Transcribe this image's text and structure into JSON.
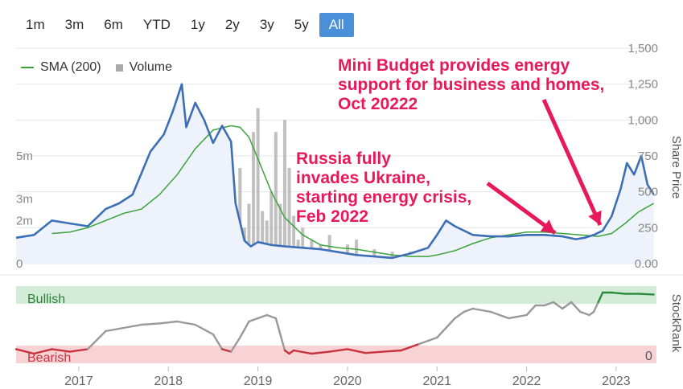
{
  "range_buttons": [
    "1m",
    "3m",
    "6m",
    "YTD",
    "1y",
    "2y",
    "3y",
    "5y",
    "All"
  ],
  "active_range": "All",
  "legend": {
    "sma": "SMA (200)",
    "volume": "Volume"
  },
  "colors": {
    "price": "#3c6fb5",
    "sma": "#3aa33a",
    "volume": "#b5b5b5",
    "area": "#eef2fa",
    "bullish_band": "#d3ecd8",
    "bearish_band": "#f7d3d6",
    "rank_bull": "#2a8a3a",
    "rank_bear": "#c8323c",
    "rank_mid": "#999999",
    "annotation": "#e8195a"
  },
  "annotations": [
    {
      "text": "Mini Budget provides energy support for business and homes, Oct 20222",
      "lines": [
        "Mini Budget provides energy",
        "support for business and homes,",
        "Oct 20222"
      ],
      "target": [
        2022.75,
        260
      ]
    },
    {
      "text": "Russia fully invades Ukraine, starting energy crisis, Feb 2022",
      "lines": [
        "Russia fully",
        "invades Ukraine,",
        "starting energy crisis,",
        "Feb 2022"
      ],
      "target": [
        2022.2,
        210
      ]
    }
  ],
  "chart_data": [
    {
      "type": "line",
      "title": "",
      "ylabel": "Share Price",
      "x_axis": {
        "type": "year",
        "range": [
          2016.3,
          2023.45
        ],
        "ticks": [
          "2017",
          "2018",
          "2019",
          "2020",
          "2021",
          "2022",
          "2023"
        ]
      },
      "y_right": {
        "range": [
          0,
          1500
        ],
        "ticks": [
          "0.00",
          "250",
          "500",
          "750",
          "1,000",
          "1,250",
          "1,500"
        ]
      },
      "y_left_volume": {
        "range": [
          0,
          9
        ],
        "ticks": [
          "0",
          "2m",
          "3m",
          "5m"
        ],
        "unit": "m"
      },
      "grid": true,
      "series": [
        {
          "name": "Share Price",
          "x": [
            2016.3,
            2016.5,
            2016.7,
            2016.9,
            2017.1,
            2017.3,
            2017.45,
            2017.6,
            2017.8,
            2017.95,
            2018.05,
            2018.15,
            2018.2,
            2018.3,
            2018.4,
            2018.5,
            2018.6,
            2018.7,
            2018.75,
            2018.85,
            2018.92,
            2019.0,
            2019.15,
            2019.3,
            2019.5,
            2019.7,
            2019.9,
            2020.1,
            2020.3,
            2020.5,
            2020.7,
            2020.9,
            2021.0,
            2021.1,
            2021.2,
            2021.4,
            2021.6,
            2021.8,
            2022.0,
            2022.2,
            2022.4,
            2022.55,
            2022.65,
            2022.75,
            2022.85,
            2022.95,
            2023.05,
            2023.12,
            2023.2,
            2023.28,
            2023.35,
            2023.42
          ],
          "values": [
            180,
            200,
            300,
            280,
            260,
            380,
            420,
            480,
            780,
            900,
            1060,
            1250,
            950,
            1120,
            1000,
            840,
            960,
            850,
            420,
            160,
            120,
            150,
            130,
            120,
            110,
            100,
            80,
            60,
            50,
            40,
            70,
            110,
            200,
            300,
            260,
            200,
            190,
            190,
            200,
            200,
            190,
            170,
            180,
            200,
            230,
            330,
            520,
            700,
            620,
            750,
            550,
            480
          ]
        },
        {
          "name": "SMA (200)",
          "x": [
            2016.7,
            2016.9,
            2017.1,
            2017.3,
            2017.5,
            2017.7,
            2017.9,
            2018.1,
            2018.3,
            2018.5,
            2018.7,
            2018.8,
            2018.9,
            2019.0,
            2019.15,
            2019.3,
            2019.5,
            2019.7,
            2019.9,
            2020.1,
            2020.3,
            2020.5,
            2020.7,
            2020.9,
            2021.0,
            2021.2,
            2021.4,
            2021.6,
            2021.8,
            2022.0,
            2022.2,
            2022.4,
            2022.6,
            2022.8,
            2022.95,
            2023.1,
            2023.25,
            2023.42
          ],
          "values": [
            210,
            220,
            250,
            300,
            350,
            380,
            480,
            620,
            800,
            930,
            960,
            950,
            880,
            730,
            500,
            320,
            200,
            130,
            110,
            100,
            80,
            60,
            50,
            50,
            60,
            90,
            140,
            180,
            200,
            220,
            220,
            210,
            200,
            190,
            210,
            280,
            360,
            420
          ]
        },
        {
          "name": "Volume",
          "type": "bar",
          "x": [
            2018.75,
            2018.8,
            2018.85,
            2018.9,
            2018.95,
            2019.0,
            2019.05,
            2019.1,
            2019.15,
            2019.2,
            2019.25,
            2019.3,
            2019.35,
            2019.4,
            2019.45,
            2019.5,
            2019.6,
            2019.7,
            2019.8,
            2020.0,
            2020.1,
            2020.3,
            2020.5,
            2020.7,
            2021.0,
            2021.1,
            2021.3,
            2021.5,
            2021.8,
            2022.0,
            2022.2,
            2022.4,
            2022.6,
            2022.8,
            2022.95,
            2023.05,
            2023.15,
            2023.25,
            2023.35
          ],
          "values": [
            2.2,
            4.0,
            1.5,
            2.5,
            5.5,
            6.5,
            2.2,
            1.8,
            3.0,
            5.5,
            2.5,
            6.0,
            4.0,
            2.0,
            1.0,
            1.5,
            1.0,
            0.8,
            1.2,
            0.8,
            1.0,
            0.6,
            0.5,
            0.5,
            0.7,
            0.6,
            0.5,
            0.6,
            0.5,
            0.5,
            0.5,
            0.6,
            0.5,
            0.7,
            1.0,
            1.2,
            1.8,
            1.5,
            0.8
          ]
        }
      ]
    },
    {
      "type": "line",
      "title": "",
      "ylabel": "StockRank",
      "bands": [
        "Bullish",
        "Bearish"
      ],
      "y_ticks": [
        "0"
      ],
      "y_range": [
        0,
        100
      ],
      "series": [
        {
          "name": "StockRank",
          "x": [
            2016.3,
            2016.5,
            2016.7,
            2016.9,
            2017.1,
            2017.3,
            2017.5,
            2017.7,
            2017.9,
            2018.1,
            2018.3,
            2018.5,
            2018.6,
            2018.7,
            2018.8,
            2018.9,
            2019.0,
            2019.1,
            2019.2,
            2019.3,
            2019.35,
            2019.4,
            2019.6,
            2019.8,
            2020.0,
            2020.2,
            2020.4,
            2020.6,
            2020.8,
            2021.0,
            2021.1,
            2021.2,
            2021.3,
            2021.4,
            2021.6,
            2021.8,
            2022.0,
            2022.1,
            2022.2,
            2022.3,
            2022.4,
            2022.5,
            2022.6,
            2022.7,
            2022.75,
            2022.8,
            2022.85,
            2022.95,
            2023.1,
            2023.25,
            2023.42
          ],
          "values": [
            12,
            5,
            12,
            8,
            12,
            40,
            45,
            50,
            52,
            55,
            50,
            35,
            12,
            8,
            30,
            55,
            60,
            65,
            60,
            10,
            5,
            10,
            5,
            8,
            12,
            6,
            8,
            10,
            20,
            30,
            45,
            60,
            70,
            75,
            70,
            60,
            65,
            80,
            80,
            85,
            75,
            85,
            70,
            65,
            70,
            85,
            100,
            100,
            98,
            98,
            97
          ]
        }
      ]
    }
  ]
}
